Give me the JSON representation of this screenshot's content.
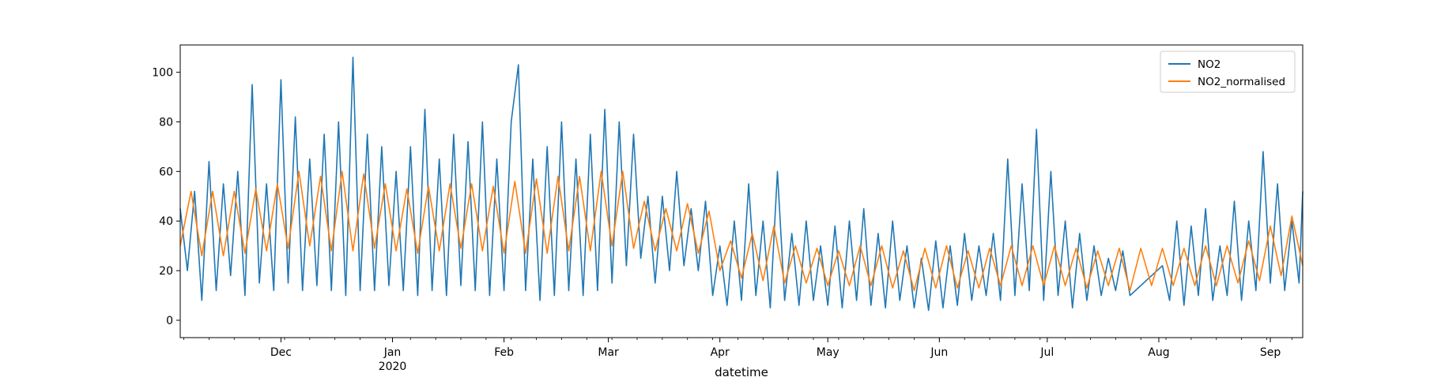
{
  "chart_data": {
    "type": "line",
    "title": "",
    "xlabel": "datetime",
    "ylabel": "",
    "ylim": [
      -7,
      111
    ],
    "yticks": [
      0,
      20,
      40,
      60,
      80,
      100
    ],
    "xlim": [
      "2019-11-03",
      "2020-09-10"
    ],
    "xticks": [
      {
        "date": "2019-12-01",
        "label": "Dec",
        "sublabel": ""
      },
      {
        "date": "2020-01-01",
        "label": "Jan",
        "sublabel": "2020"
      },
      {
        "date": "2020-02-01",
        "label": "Feb",
        "sublabel": ""
      },
      {
        "date": "2020-03-01",
        "label": "Mar",
        "sublabel": ""
      },
      {
        "date": "2020-04-01",
        "label": "Apr",
        "sublabel": ""
      },
      {
        "date": "2020-05-01",
        "label": "May",
        "sublabel": ""
      },
      {
        "date": "2020-06-01",
        "label": "Jun",
        "sublabel": ""
      },
      {
        "date": "2020-07-01",
        "label": "Jul",
        "sublabel": ""
      },
      {
        "date": "2020-08-01",
        "label": "Aug",
        "sublabel": ""
      },
      {
        "date": "2020-09-01",
        "label": "Sep",
        "sublabel": ""
      }
    ],
    "grid": false,
    "legend_position": "top-right",
    "series": [
      {
        "name": "NO2",
        "color": "#1f77b4",
        "points": [
          [
            "2019-11-03",
            45
          ],
          [
            "2019-11-05",
            20
          ],
          [
            "2019-11-07",
            52
          ],
          [
            "2019-11-09",
            8
          ],
          [
            "2019-11-11",
            64
          ],
          [
            "2019-11-13",
            12
          ],
          [
            "2019-11-15",
            55
          ],
          [
            "2019-11-17",
            18
          ],
          [
            "2019-11-19",
            60
          ],
          [
            "2019-11-21",
            10
          ],
          [
            "2019-11-23",
            95
          ],
          [
            "2019-11-25",
            15
          ],
          [
            "2019-11-27",
            55
          ],
          [
            "2019-11-29",
            12
          ],
          [
            "2019-12-01",
            97
          ],
          [
            "2019-12-03",
            15
          ],
          [
            "2019-12-05",
            82
          ],
          [
            "2019-12-07",
            12
          ],
          [
            "2019-12-09",
            65
          ],
          [
            "2019-12-11",
            14
          ],
          [
            "2019-12-13",
            75
          ],
          [
            "2019-12-15",
            12
          ],
          [
            "2019-12-17",
            80
          ],
          [
            "2019-12-19",
            10
          ],
          [
            "2019-12-21",
            106
          ],
          [
            "2019-12-23",
            12
          ],
          [
            "2019-12-25",
            75
          ],
          [
            "2019-12-27",
            12
          ],
          [
            "2019-12-29",
            70
          ],
          [
            "2019-12-31",
            14
          ],
          [
            "2020-01-02",
            60
          ],
          [
            "2020-01-04",
            12
          ],
          [
            "2020-01-06",
            70
          ],
          [
            "2020-01-08",
            10
          ],
          [
            "2020-01-10",
            85
          ],
          [
            "2020-01-12",
            12
          ],
          [
            "2020-01-14",
            65
          ],
          [
            "2020-01-16",
            10
          ],
          [
            "2020-01-18",
            75
          ],
          [
            "2020-01-20",
            14
          ],
          [
            "2020-01-22",
            72
          ],
          [
            "2020-01-24",
            12
          ],
          [
            "2020-01-26",
            80
          ],
          [
            "2020-01-28",
            10
          ],
          [
            "2020-01-30",
            65
          ],
          [
            "2020-02-01",
            12
          ],
          [
            "2020-02-03",
            80
          ],
          [
            "2020-02-05",
            103
          ],
          [
            "2020-02-07",
            12
          ],
          [
            "2020-02-09",
            65
          ],
          [
            "2020-02-11",
            8
          ],
          [
            "2020-02-13",
            70
          ],
          [
            "2020-02-15",
            10
          ],
          [
            "2020-02-17",
            80
          ],
          [
            "2020-02-19",
            12
          ],
          [
            "2020-02-21",
            65
          ],
          [
            "2020-02-23",
            10
          ],
          [
            "2020-02-25",
            75
          ],
          [
            "2020-02-27",
            12
          ],
          [
            "2020-02-29",
            85
          ],
          [
            "2020-03-02",
            15
          ],
          [
            "2020-03-04",
            80
          ],
          [
            "2020-03-06",
            22
          ],
          [
            "2020-03-08",
            75
          ],
          [
            "2020-03-10",
            25
          ],
          [
            "2020-03-12",
            50
          ],
          [
            "2020-03-14",
            15
          ],
          [
            "2020-03-16",
            50
          ],
          [
            "2020-03-18",
            20
          ],
          [
            "2020-03-20",
            60
          ],
          [
            "2020-03-22",
            22
          ],
          [
            "2020-03-24",
            45
          ],
          [
            "2020-03-26",
            20
          ],
          [
            "2020-03-28",
            48
          ],
          [
            "2020-03-30",
            10
          ],
          [
            "2020-04-01",
            30
          ],
          [
            "2020-04-03",
            6
          ],
          [
            "2020-04-05",
            40
          ],
          [
            "2020-04-07",
            8
          ],
          [
            "2020-04-09",
            55
          ],
          [
            "2020-04-11",
            10
          ],
          [
            "2020-04-13",
            40
          ],
          [
            "2020-04-15",
            5
          ],
          [
            "2020-04-17",
            60
          ],
          [
            "2020-04-19",
            8
          ],
          [
            "2020-04-21",
            35
          ],
          [
            "2020-04-23",
            6
          ],
          [
            "2020-04-25",
            40
          ],
          [
            "2020-04-27",
            8
          ],
          [
            "2020-04-29",
            30
          ],
          [
            "2020-05-01",
            6
          ],
          [
            "2020-05-03",
            38
          ],
          [
            "2020-05-05",
            5
          ],
          [
            "2020-05-07",
            40
          ],
          [
            "2020-05-09",
            8
          ],
          [
            "2020-05-11",
            45
          ],
          [
            "2020-05-13",
            6
          ],
          [
            "2020-05-15",
            35
          ],
          [
            "2020-05-17",
            5
          ],
          [
            "2020-05-19",
            40
          ],
          [
            "2020-05-21",
            8
          ],
          [
            "2020-05-23",
            30
          ],
          [
            "2020-05-25",
            5
          ],
          [
            "2020-05-27",
            25
          ],
          [
            "2020-05-29",
            4
          ],
          [
            "2020-05-31",
            32
          ],
          [
            "2020-06-02",
            5
          ],
          [
            "2020-06-04",
            30
          ],
          [
            "2020-06-06",
            6
          ],
          [
            "2020-06-08",
            35
          ],
          [
            "2020-06-10",
            8
          ],
          [
            "2020-06-12",
            30
          ],
          [
            "2020-06-14",
            10
          ],
          [
            "2020-06-16",
            35
          ],
          [
            "2020-06-18",
            8
          ],
          [
            "2020-06-20",
            65
          ],
          [
            "2020-06-22",
            10
          ],
          [
            "2020-06-24",
            55
          ],
          [
            "2020-06-26",
            12
          ],
          [
            "2020-06-28",
            77
          ],
          [
            "2020-06-30",
            8
          ],
          [
            "2020-07-02",
            60
          ],
          [
            "2020-07-04",
            10
          ],
          [
            "2020-07-06",
            40
          ],
          [
            "2020-07-08",
            5
          ],
          [
            "2020-07-10",
            35
          ],
          [
            "2020-07-12",
            8
          ],
          [
            "2020-07-14",
            30
          ],
          [
            "2020-07-16",
            10
          ],
          [
            "2020-07-18",
            25
          ],
          [
            "2020-07-20",
            12
          ],
          [
            "2020-07-22",
            28
          ],
          [
            "2020-07-24",
            10
          ],
          [
            "2020-08-02",
            22
          ],
          [
            "2020-08-04",
            8
          ],
          [
            "2020-08-06",
            40
          ],
          [
            "2020-08-08",
            6
          ],
          [
            "2020-08-10",
            38
          ],
          [
            "2020-08-12",
            10
          ],
          [
            "2020-08-14",
            45
          ],
          [
            "2020-08-16",
            8
          ],
          [
            "2020-08-18",
            30
          ],
          [
            "2020-08-20",
            10
          ],
          [
            "2020-08-22",
            48
          ],
          [
            "2020-08-24",
            8
          ],
          [
            "2020-08-26",
            40
          ],
          [
            "2020-08-28",
            12
          ],
          [
            "2020-08-30",
            68
          ],
          [
            "2020-09-01",
            15
          ],
          [
            "2020-09-03",
            55
          ],
          [
            "2020-09-05",
            12
          ],
          [
            "2020-09-07",
            40
          ],
          [
            "2020-09-09",
            15
          ],
          [
            "2020-09-10",
            52
          ]
        ]
      },
      {
        "name": "NO2_normalised",
        "color": "#ff7f0e",
        "points": [
          [
            "2019-11-03",
            30
          ],
          [
            "2019-11-06",
            52
          ],
          [
            "2019-11-09",
            26
          ],
          [
            "2019-11-12",
            52
          ],
          [
            "2019-11-15",
            26
          ],
          [
            "2019-11-18",
            52
          ],
          [
            "2019-11-21",
            27
          ],
          [
            "2019-11-24",
            53
          ],
          [
            "2019-11-27",
            28
          ],
          [
            "2019-11-30",
            55
          ],
          [
            "2019-12-03",
            29
          ],
          [
            "2019-12-06",
            60
          ],
          [
            "2019-12-09",
            30
          ],
          [
            "2019-12-12",
            58
          ],
          [
            "2019-12-15",
            28
          ],
          [
            "2019-12-18",
            60
          ],
          [
            "2019-12-21",
            28
          ],
          [
            "2019-12-24",
            59
          ],
          [
            "2019-12-27",
            29
          ],
          [
            "2019-12-30",
            55
          ],
          [
            "2020-01-02",
            28
          ],
          [
            "2020-01-05",
            53
          ],
          [
            "2020-01-08",
            27
          ],
          [
            "2020-01-11",
            54
          ],
          [
            "2020-01-14",
            28
          ],
          [
            "2020-01-17",
            55
          ],
          [
            "2020-01-20",
            29
          ],
          [
            "2020-01-23",
            55
          ],
          [
            "2020-01-26",
            28
          ],
          [
            "2020-01-29",
            54
          ],
          [
            "2020-02-01",
            27
          ],
          [
            "2020-02-04",
            56
          ],
          [
            "2020-02-07",
            27
          ],
          [
            "2020-02-10",
            57
          ],
          [
            "2020-02-13",
            27
          ],
          [
            "2020-02-16",
            58
          ],
          [
            "2020-02-19",
            28
          ],
          [
            "2020-02-22",
            58
          ],
          [
            "2020-02-25",
            28
          ],
          [
            "2020-02-28",
            60
          ],
          [
            "2020-03-02",
            30
          ],
          [
            "2020-03-05",
            60
          ],
          [
            "2020-03-08",
            29
          ],
          [
            "2020-03-11",
            48
          ],
          [
            "2020-03-14",
            28
          ],
          [
            "2020-03-17",
            45
          ],
          [
            "2020-03-20",
            28
          ],
          [
            "2020-03-23",
            47
          ],
          [
            "2020-03-26",
            27
          ],
          [
            "2020-03-29",
            44
          ],
          [
            "2020-04-01",
            20
          ],
          [
            "2020-04-04",
            32
          ],
          [
            "2020-04-07",
            17
          ],
          [
            "2020-04-10",
            35
          ],
          [
            "2020-04-13",
            16
          ],
          [
            "2020-04-16",
            38
          ],
          [
            "2020-04-19",
            15
          ],
          [
            "2020-04-22",
            30
          ],
          [
            "2020-04-25",
            15
          ],
          [
            "2020-04-28",
            29
          ],
          [
            "2020-05-01",
            14
          ],
          [
            "2020-05-04",
            28
          ],
          [
            "2020-05-07",
            14
          ],
          [
            "2020-05-10",
            30
          ],
          [
            "2020-05-13",
            14
          ],
          [
            "2020-05-16",
            30
          ],
          [
            "2020-05-19",
            13
          ],
          [
            "2020-05-22",
            28
          ],
          [
            "2020-05-25",
            12
          ],
          [
            "2020-05-28",
            29
          ],
          [
            "2020-05-31",
            13
          ],
          [
            "2020-06-03",
            30
          ],
          [
            "2020-06-06",
            13
          ],
          [
            "2020-06-09",
            28
          ],
          [
            "2020-06-12",
            13
          ],
          [
            "2020-06-15",
            29
          ],
          [
            "2020-06-18",
            14
          ],
          [
            "2020-06-21",
            30
          ],
          [
            "2020-06-24",
            14
          ],
          [
            "2020-06-27",
            30
          ],
          [
            "2020-06-30",
            14
          ],
          [
            "2020-07-03",
            30
          ],
          [
            "2020-07-06",
            14
          ],
          [
            "2020-07-09",
            29
          ],
          [
            "2020-07-12",
            13
          ],
          [
            "2020-07-15",
            28
          ],
          [
            "2020-07-18",
            14
          ],
          [
            "2020-07-21",
            29
          ],
          [
            "2020-07-24",
            12
          ],
          [
            "2020-07-27",
            29
          ],
          [
            "2020-07-30",
            14
          ],
          [
            "2020-08-02",
            29
          ],
          [
            "2020-08-05",
            14
          ],
          [
            "2020-08-08",
            29
          ],
          [
            "2020-08-11",
            14
          ],
          [
            "2020-08-14",
            30
          ],
          [
            "2020-08-17",
            14
          ],
          [
            "2020-08-20",
            30
          ],
          [
            "2020-08-23",
            15
          ],
          [
            "2020-08-26",
            32
          ],
          [
            "2020-08-29",
            16
          ],
          [
            "2020-09-01",
            38
          ],
          [
            "2020-09-04",
            18
          ],
          [
            "2020-09-07",
            42
          ],
          [
            "2020-09-10",
            22
          ]
        ]
      }
    ]
  }
}
